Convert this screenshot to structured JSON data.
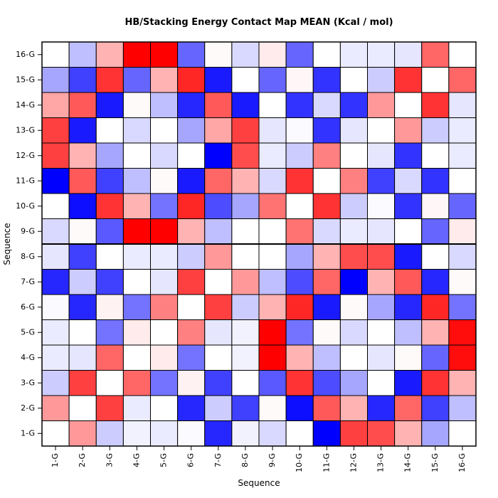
{
  "chart_data": {
    "type": "heatmap",
    "title": "HB/Stacking Energy Contact Map MEAN (Kcal / mol)",
    "xlabel": "Sequence",
    "ylabel": "Sequence",
    "x_categories": [
      "1-G",
      "2-G",
      "3-G",
      "4-G",
      "5-G",
      "6-G",
      "7-G",
      "8-G",
      "9-G",
      "10-G",
      "11-G",
      "12-G",
      "13-G",
      "14-G",
      "15-G",
      "16-G"
    ],
    "y_categories": [
      "1-G",
      "2-G",
      "3-G",
      "4-G",
      "5-G",
      "6-G",
      "7-G",
      "8-G",
      "9-G",
      "10-G",
      "11-G",
      "12-G",
      "13-G",
      "14-G",
      "15-G",
      "16-G"
    ],
    "value_range": [
      -1,
      1
    ],
    "colors": {
      "negative": "#0000ff",
      "zero": "#ffffff",
      "positive": "#ff0000",
      "grid": "#000000"
    },
    "matrix": [
      [
        0,
        0.4,
        -0.2,
        -0.05,
        -0.08,
        -0.02,
        -0.85,
        -0.05,
        -0.15,
        0,
        -1,
        0.75,
        0.7,
        0.3,
        -0.35,
        0
      ],
      [
        0.4,
        0,
        0.75,
        -0.08,
        0,
        -0.85,
        -0.2,
        -0.75,
        0.02,
        -0.95,
        0.65,
        0.3,
        -0.85,
        0.6,
        -0.75,
        -0.25
      ],
      [
        -0.2,
        0.75,
        0,
        0.6,
        -0.55,
        0.05,
        -0.75,
        0,
        -0.65,
        0.8,
        -0.7,
        -0.35,
        0,
        -0.9,
        0.8,
        0.3
      ],
      [
        -0.08,
        -0.1,
        0.6,
        0,
        0.08,
        -0.55,
        0,
        -0.05,
        1,
        0.3,
        -0.25,
        0,
        -0.1,
        0.02,
        -0.6,
        0.95
      ],
      [
        -0.08,
        0,
        -0.55,
        0.08,
        0,
        0.5,
        -0.1,
        -0.05,
        1,
        -0.55,
        0.02,
        -0.15,
        0,
        -0.25,
        0.3,
        0.95
      ],
      [
        -0.02,
        -0.85,
        0.05,
        -0.55,
        0.5,
        0,
        0.75,
        -0.2,
        0.3,
        0.85,
        -0.9,
        0.02,
        -0.35,
        -0.85,
        0.85,
        -0.55
      ],
      [
        -0.85,
        -0.2,
        -0.75,
        0,
        -0.1,
        0.75,
        0,
        0.4,
        -0.25,
        -0.7,
        0.6,
        -1,
        0.3,
        0.65,
        -0.85,
        0.02
      ],
      [
        -0.1,
        -0.75,
        0,
        -0.08,
        -0.08,
        -0.2,
        0.4,
        0,
        0,
        -0.35,
        0.3,
        0.7,
        0.7,
        -0.9,
        0,
        -0.15
      ],
      [
        -0.15,
        0.02,
        -0.65,
        1,
        1,
        0.3,
        -0.25,
        0,
        0,
        0.55,
        -0.15,
        -0.08,
        -0.1,
        0,
        -0.6,
        0.08
      ],
      [
        0,
        -0.95,
        0.8,
        0.3,
        -0.55,
        0.85,
        -0.7,
        -0.35,
        0.55,
        0,
        0.8,
        -0.2,
        -0.02,
        -0.8,
        0.03,
        -0.6
      ],
      [
        -1,
        0.65,
        -0.75,
        -0.25,
        0.02,
        -0.9,
        0.6,
        0.3,
        -0.15,
        0.8,
        0,
        0.5,
        -0.75,
        -0.15,
        -0.8,
        0
      ],
      [
        0.75,
        0.3,
        -0.35,
        0,
        -0.15,
        0,
        -1,
        0.7,
        -0.08,
        -0.2,
        0.5,
        0,
        -0.1,
        -0.8,
        0,
        -0.08
      ],
      [
        0.75,
        -0.9,
        0,
        -0.15,
        0,
        -0.35,
        0.35,
        0.75,
        -0.1,
        -0.02,
        -0.8,
        -0.1,
        0,
        0.4,
        -0.2,
        -0.08
      ],
      [
        0.35,
        0.65,
        -0.9,
        0.02,
        -0.25,
        -0.85,
        0.65,
        -0.9,
        0,
        -0.8,
        -0.15,
        -0.8,
        0.4,
        0,
        0.8,
        -0.1
      ],
      [
        -0.35,
        -0.75,
        0.8,
        -0.6,
        0.3,
        0.85,
        -0.9,
        0,
        -0.6,
        0.03,
        -0.8,
        0,
        -0.2,
        0.8,
        0,
        0.6
      ],
      [
        0,
        -0.25,
        0.3,
        1,
        1,
        -0.6,
        0.02,
        -0.15,
        0.08,
        -0.6,
        0,
        -0.08,
        -0.08,
        -0.1,
        0.6,
        0
      ]
    ]
  }
}
